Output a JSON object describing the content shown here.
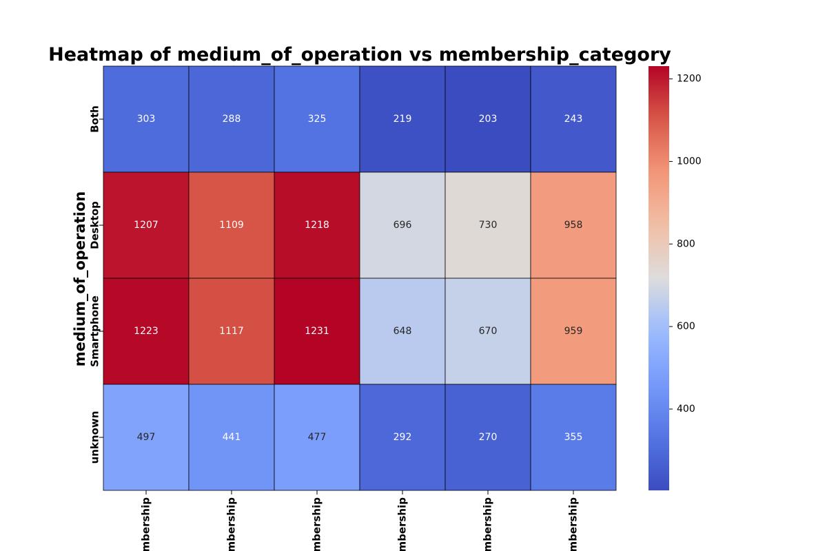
{
  "chart_data": {
    "type": "heatmap",
    "title": "Heatmap of medium_of_operation vs membership_category",
    "ylabel": "medium_of_operation",
    "xlabel": "",
    "rows": [
      "Both",
      "Desktop",
      "Smartphone",
      "unknown"
    ],
    "columns": [
      "mbership",
      "mbership",
      "mbership",
      "mbership",
      "mbership",
      "mbership"
    ],
    "values": [
      [
        303,
        288,
        325,
        219,
        203,
        243
      ],
      [
        1207,
        1109,
        1218,
        696,
        730,
        958
      ],
      [
        1223,
        1117,
        1231,
        648,
        670,
        959
      ],
      [
        497,
        441,
        477,
        292,
        270,
        355
      ]
    ],
    "colormap": "coolwarm",
    "vmin": 203,
    "vmax": 1231,
    "colorbar_ticks": [
      400,
      600,
      800,
      1000,
      1200
    ],
    "cell_borders": true,
    "annotations": true
  }
}
